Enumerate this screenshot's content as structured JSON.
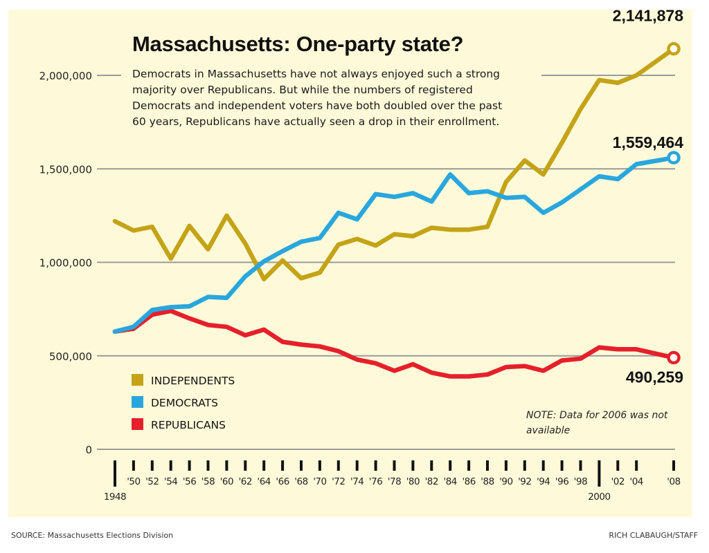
{
  "chart_data": {
    "type": "line",
    "title": "Massachusetts: One-party state?",
    "subtitle": "Democrats in Massachusetts have not always enjoyed such a strong majority over Republicans. But while the numbers of registered Democrats and independent voters have both doubled over the past 60 years, Republicans have actually seen a drop in their enrollment.",
    "xlabel": "",
    "ylabel": "",
    "ylim": [
      0,
      2000000
    ],
    "yticks": [
      0,
      500000,
      1000000,
      1500000,
      2000000
    ],
    "ytick_labels": [
      "0",
      "500,000",
      "1,000,000",
      "1,500,000",
      "2,000,000"
    ],
    "x": [
      1948,
      1950,
      1952,
      1954,
      1956,
      1958,
      1960,
      1962,
      1964,
      1966,
      1968,
      1970,
      1972,
      1974,
      1976,
      1978,
      1980,
      1982,
      1984,
      1986,
      1988,
      1990,
      1992,
      1994,
      1996,
      1998,
      2000,
      2002,
      2004,
      2008
    ],
    "xticks": [
      1948,
      1950,
      1952,
      1954,
      1956,
      1958,
      1960,
      1962,
      1964,
      1966,
      1968,
      1970,
      1972,
      1974,
      1976,
      1978,
      1980,
      1982,
      1984,
      1986,
      1988,
      1990,
      1992,
      1994,
      1996,
      1998,
      2000,
      2002,
      2004,
      2008
    ],
    "xtick_labels": [
      "1948",
      "'50",
      "'52",
      "'54",
      "'56",
      "'58",
      "'60",
      "'62",
      "'64",
      "'66",
      "'68",
      "'70",
      "'72",
      "'74",
      "'76",
      "'78",
      "'80",
      "'82",
      "'84",
      "'86",
      "'88",
      "'90",
      "'92",
      "'94",
      "'96",
      "'98",
      "2000",
      "'02",
      "'04",
      "'08"
    ],
    "major_xticks": [
      1948,
      2000
    ],
    "grid": true,
    "legend_position": "bottom-left",
    "series": [
      {
        "name": "INDEPENDENTS",
        "color": "#c4a316",
        "values": [
          1220000,
          1170000,
          1190000,
          1020000,
          1195000,
          1070000,
          1250000,
          1100000,
          910000,
          1010000,
          915000,
          945000,
          1095000,
          1125000,
          1090000,
          1150000,
          1140000,
          1185000,
          1175000,
          1175000,
          1190000,
          1430000,
          1545000,
          1470000,
          1640000,
          1820000,
          1975000,
          1960000,
          2000000,
          2141878
        ],
        "end_label": "2,141,878"
      },
      {
        "name": "DEMOCRATS",
        "color": "#29a6de",
        "values": [
          630000,
          655000,
          745000,
          760000,
          765000,
          815000,
          810000,
          925000,
          1005000,
          1060000,
          1110000,
          1130000,
          1265000,
          1230000,
          1365000,
          1350000,
          1370000,
          1325000,
          1470000,
          1370000,
          1380000,
          1345000,
          1350000,
          1265000,
          1320000,
          1390000,
          1460000,
          1445000,
          1525000,
          1559464
        ],
        "end_label": "1,559,464"
      },
      {
        "name": "REPUBLICANS",
        "color": "#e5202a",
        "values": [
          630000,
          645000,
          720000,
          740000,
          700000,
          665000,
          655000,
          610000,
          640000,
          575000,
          560000,
          550000,
          525000,
          480000,
          460000,
          420000,
          455000,
          410000,
          390000,
          390000,
          400000,
          440000,
          445000,
          420000,
          475000,
          485000,
          545000,
          535000,
          535000,
          490259
        ],
        "end_label": "490,259"
      }
    ],
    "annotations": [
      "NOTE: Data for 2006 was not available"
    ]
  },
  "footer": {
    "source": "SOURCE: Massachusetts Elections Division",
    "credit": "RICH CLABAUGH/STAFF"
  }
}
